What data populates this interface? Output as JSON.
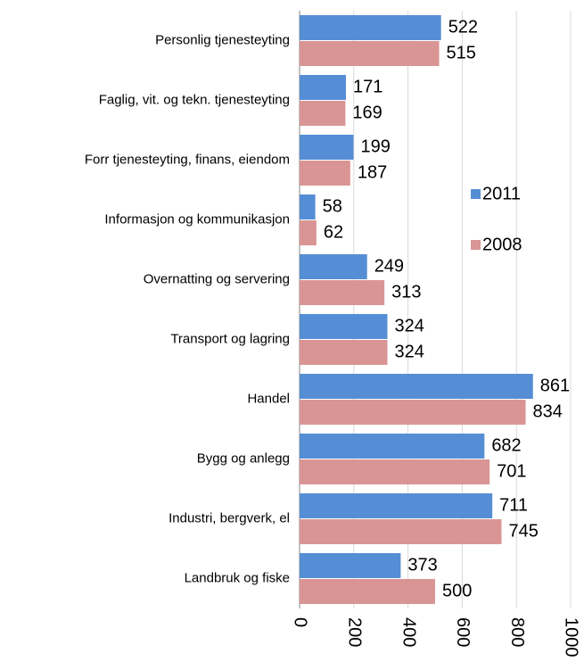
{
  "chart_data": {
    "type": "bar",
    "orientation": "horizontal",
    "categories": [
      "Personlig tjenesteyting",
      "Faglig, vit. og tekn. tjenesteyting",
      "Forr tjenesteyting, finans, eiendom",
      "Informasjon og kommunikasjon",
      "Overnatting og servering",
      "Transport og lagring",
      "Handel",
      "Bygg og anlegg",
      "Industri, bergverk, el",
      "Landbruk og fiske"
    ],
    "series": [
      {
        "name": "2011",
        "color": "#558ed5",
        "values": [
          522,
          171,
          199,
          58,
          249,
          324,
          861,
          682,
          711,
          373
        ]
      },
      {
        "name": "2008",
        "color": "#d99594",
        "values": [
          515,
          169,
          187,
          62,
          313,
          324,
          834,
          701,
          745,
          500
        ]
      }
    ],
    "xlim": [
      0,
      1000
    ],
    "xticks": [
      0,
      200,
      400,
      600,
      800,
      1000
    ],
    "grid": true,
    "legend": "right"
  }
}
